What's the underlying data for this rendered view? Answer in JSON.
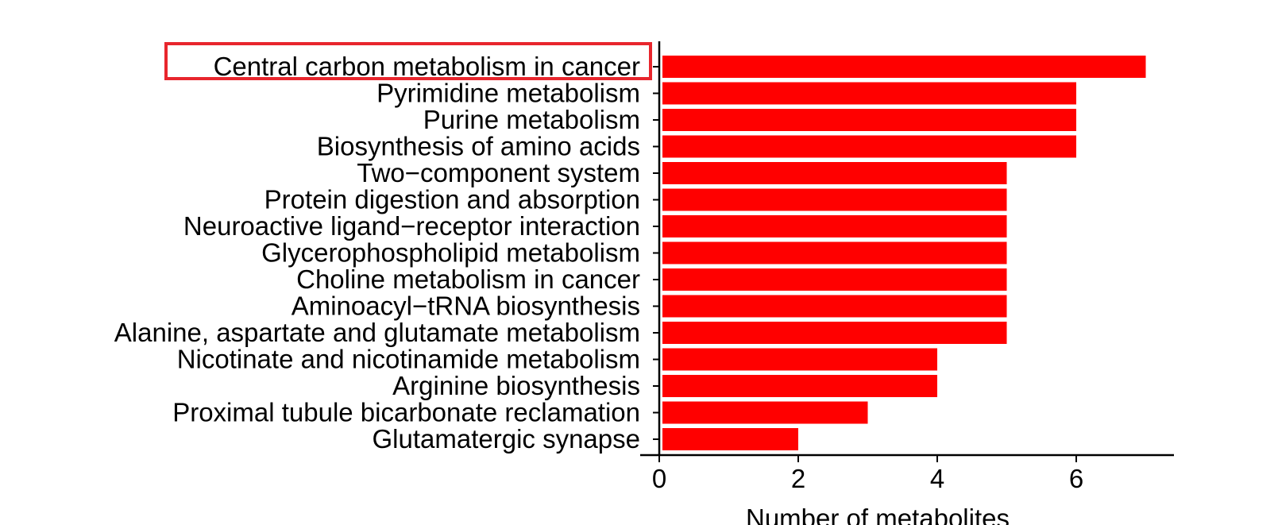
{
  "chart_data": {
    "type": "bar",
    "orientation": "horizontal",
    "title": "",
    "xlabel": "Number of metabolites",
    "ylabel": "",
    "xlim": [
      0,
      7.4
    ],
    "xticks": [
      0,
      2,
      4,
      6
    ],
    "grid": false,
    "bar_color": "#ff0000",
    "highlight_color": "#e8262d",
    "highlighted_category": "Central carbon metabolism in cancer",
    "categories": [
      "Central carbon metabolism in cancer",
      "Pyrimidine metabolism",
      "Purine metabolism",
      "Biosynthesis of amino acids",
      "Two−component system",
      "Protein digestion and absorption",
      "Neuroactive ligand−receptor interaction",
      "Glycerophospholipid metabolism",
      "Choline metabolism in cancer",
      "Aminoacyl−tRNA biosynthesis",
      "Alanine, aspartate and glutamate metabolism",
      "Nicotinate and nicotinamide metabolism",
      "Arginine biosynthesis",
      "Proximal tubule bicarbonate reclamation",
      "Glutamatergic synapse"
    ],
    "values": [
      7,
      6,
      6,
      6,
      5,
      5,
      5,
      5,
      5,
      5,
      5,
      4,
      4,
      3,
      2
    ]
  }
}
